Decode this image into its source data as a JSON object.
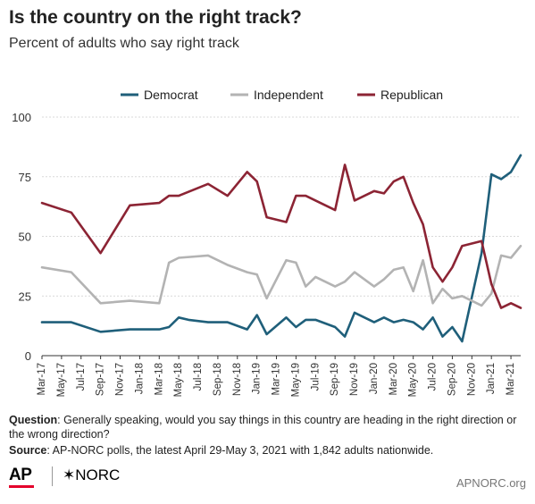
{
  "title": "Is the country on the right track?",
  "subtitle": "Percent of adults who say right track",
  "footer": {
    "question_label": "Question",
    "question_text": ": Generally speaking, would you say things in this country are heading in the right direction or the wrong direction?",
    "source_label": "Source",
    "source_text": ": AP-NORC polls, the latest April 29-May 3, 2021 with 1,842 adults nationwide."
  },
  "logos": {
    "ap": "AP",
    "norc": "✶NORC",
    "url": "APNORC.org"
  },
  "colors": {
    "democrat": "#1f5f7a",
    "independent": "#b3b3b3",
    "republican": "#8c2434",
    "grid": "#d9d9d9",
    "axis": "#333333"
  },
  "chart_data": {
    "type": "line",
    "ylim": [
      0,
      100
    ],
    "yticks": [
      0,
      25,
      50,
      75,
      100
    ],
    "xlim": [
      0,
      49
    ],
    "x_tick_labels": [
      "Mar-17",
      "May-17",
      "Jul-17",
      "Sep-17",
      "Nov-17",
      "Jan-18",
      "Mar-18",
      "May-18",
      "Jul-18",
      "Sep-18",
      "Nov-18",
      "Jan-19",
      "Mar-19",
      "May-19",
      "Jul-19",
      "Sep-19",
      "Nov-19",
      "Jan-20",
      "Mar-20",
      "May-20",
      "Jul-20",
      "Sep-20",
      "Nov-20",
      "Jan-21",
      "Mar-21"
    ],
    "legend_position": "top-center",
    "series": [
      {
        "name": "Democrat",
        "color": "#1f5f7a",
        "x": [
          0,
          3,
          6,
          9,
          12,
          13,
          14,
          15,
          17,
          19,
          21,
          22,
          23,
          25,
          26,
          27,
          28,
          30,
          31,
          32,
          34,
          35,
          36,
          37,
          38,
          39,
          40,
          41,
          42,
          43,
          45,
          46,
          47,
          48,
          49
        ],
        "y": [
          14,
          14,
          10,
          11,
          11,
          12,
          16,
          15,
          14,
          14,
          11,
          17,
          9,
          16,
          12,
          15,
          15,
          12,
          8,
          18,
          14,
          16,
          14,
          15,
          14,
          11,
          16,
          8,
          12,
          6,
          43,
          76,
          74,
          77,
          84
        ]
      },
      {
        "name": "Independent",
        "color": "#b3b3b3",
        "x": [
          0,
          3,
          6,
          9,
          12,
          13,
          14,
          17,
          19,
          21,
          22,
          23,
          25,
          26,
          27,
          28,
          30,
          31,
          32,
          34,
          35,
          36,
          37,
          38,
          39,
          40,
          41,
          42,
          43,
          45,
          46,
          47,
          48,
          49
        ],
        "y": [
          37,
          35,
          22,
          23,
          22,
          39,
          41,
          42,
          38,
          35,
          34,
          24,
          40,
          39,
          29,
          33,
          29,
          31,
          35,
          29,
          32,
          36,
          37,
          27,
          40,
          22,
          28,
          24,
          25,
          21,
          26,
          42,
          41,
          46
        ]
      },
      {
        "name": "Republican",
        "color": "#8c2434",
        "x": [
          0,
          3,
          6,
          9,
          12,
          13,
          14,
          17,
          19,
          21,
          22,
          23,
          25,
          26,
          27,
          28,
          30,
          31,
          32,
          34,
          35,
          36,
          37,
          38,
          39,
          40,
          41,
          42,
          43,
          45,
          46,
          47,
          48,
          49
        ],
        "y": [
          64,
          60,
          43,
          63,
          64,
          67,
          67,
          72,
          67,
          77,
          73,
          58,
          56,
          67,
          67,
          65,
          61,
          80,
          65,
          69,
          68,
          73,
          75,
          64,
          55,
          37,
          31,
          37,
          46,
          48,
          30,
          20,
          22,
          20
        ]
      }
    ]
  }
}
